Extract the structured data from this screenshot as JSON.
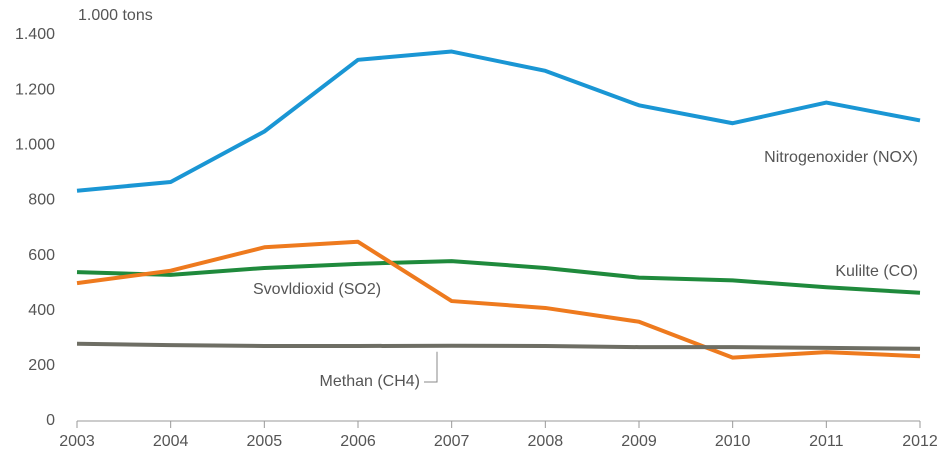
{
  "chart_data": {
    "type": "line",
    "y_axis_label": "1.000 tons",
    "x": [
      2003,
      2004,
      2005,
      2006,
      2007,
      2008,
      2009,
      2010,
      2011,
      2012
    ],
    "xlim": [
      2003,
      2012
    ],
    "xticks": [
      2003,
      2004,
      2005,
      2006,
      2007,
      2008,
      2009,
      2010,
      2011,
      2012
    ],
    "ylim": [
      0,
      1400
    ],
    "yticks": [
      0,
      200,
      400,
      600,
      800,
      {
        "value": 1000,
        "label": "1.000"
      },
      {
        "value": 1200,
        "label": "1.200"
      },
      {
        "value": 1400,
        "label": "1.400"
      }
    ],
    "grid": false,
    "series": [
      {
        "name": "Nitrogenoxider (NOX)",
        "color": "#1a96d4",
        "values": [
          835,
          867,
          1050,
          1310,
          1340,
          1270,
          1145,
          1080,
          1155,
          1090
        ]
      },
      {
        "name": "Kulilte (CO)",
        "color": "#1f8a3c",
        "values": [
          540,
          530,
          555,
          570,
          580,
          555,
          520,
          510,
          485,
          465
        ]
      },
      {
        "name": "Svovldioxid (SO2)",
        "color": "#ee7a1e",
        "values": [
          500,
          545,
          630,
          650,
          435,
          410,
          360,
          230,
          250,
          235
        ]
      },
      {
        "name": "Methan (CH4)",
        "color": "#6e6e64",
        "values": [
          280,
          275,
          272,
          272,
          273,
          272,
          268,
          268,
          265,
          262
        ]
      }
    ]
  }
}
